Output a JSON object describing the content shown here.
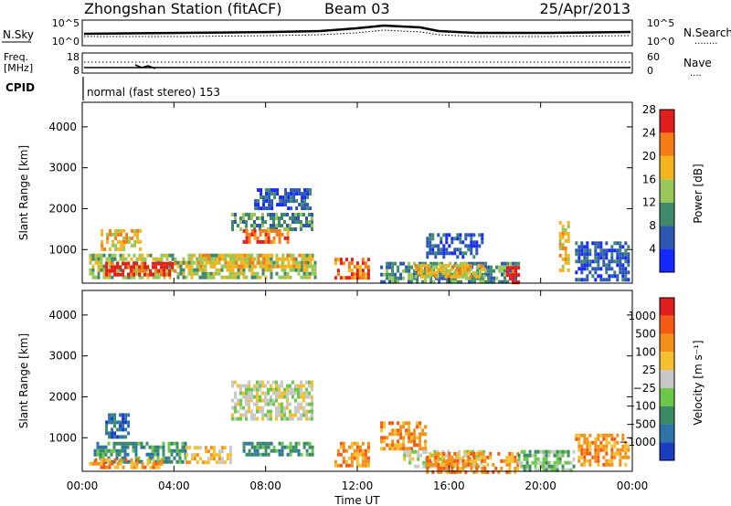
{
  "header": {
    "station": "Zhongshan Station (fitACF)",
    "beam": "Beam 03",
    "date": "25/Apr/2013"
  },
  "panels": {
    "noise": {
      "left_label": "N.Sky",
      "right_label": "N.Search",
      "left_ticks": [
        "10^5",
        "10^0"
      ],
      "right_ticks": [
        "10^5",
        "10^0"
      ],
      "right_legend_line": "........"
    },
    "freq": {
      "left_label_1": "Freq.",
      "left_label_2": "[MHz]",
      "right_label": "Nave",
      "left_ticks": [
        "18",
        "8"
      ],
      "right_ticks": [
        "60",
        "0"
      ],
      "right_legend_line": "...."
    },
    "cpid": {
      "label": "CPID",
      "text": "normal (fast stereo) 153"
    }
  },
  "x_ticks": [
    "00:00",
    "04:00",
    "08:00",
    "12:00",
    "16:00",
    "20:00",
    "00:00"
  ],
  "xlabel": "Time UT",
  "chart_data": [
    {
      "type": "heatmap",
      "name": "power",
      "ylabel": "Slant Range [km]",
      "y_ticks": [
        "1000",
        "2000",
        "3000",
        "4000"
      ],
      "ylim": [
        180,
        4600
      ],
      "xlim_hours": [
        0,
        24
      ],
      "colorbar_label": "Power [dB]",
      "colorbar_ticks": [
        "4",
        "8",
        "12",
        "16",
        "20",
        "24",
        "28"
      ],
      "colorbar_colors": [
        "#1428ff",
        "#2c58b4",
        "#3f8a6a",
        "#98c85a",
        "#f4b41c",
        "#f47c14",
        "#e01e1e"
      ],
      "regions": [
        {
          "x0": 0.3,
          "x1": 10.2,
          "y0": 300,
          "y1": 900,
          "level": 3
        },
        {
          "x0": 1.0,
          "x1": 4.0,
          "y0": 350,
          "y1": 700,
          "level": 6
        },
        {
          "x0": 0.8,
          "x1": 2.5,
          "y0": 1000,
          "y1": 1500,
          "level": 4
        },
        {
          "x0": 5.0,
          "x1": 10.0,
          "y0": 600,
          "y1": 900,
          "level": 4
        },
        {
          "x0": 6.5,
          "x1": 10.0,
          "y0": 1500,
          "y1": 1900,
          "level": 2
        },
        {
          "x0": 7.0,
          "x1": 9.0,
          "y0": 1200,
          "y1": 1500,
          "level": 5
        },
        {
          "x0": 7.5,
          "x1": 10.0,
          "y0": 2000,
          "y1": 2500,
          "level": 1
        },
        {
          "x0": 11.0,
          "x1": 12.5,
          "y0": 350,
          "y1": 800,
          "level": 5
        },
        {
          "x0": 13.0,
          "x1": 19.0,
          "y0": 200,
          "y1": 700,
          "level": 2
        },
        {
          "x0": 14.5,
          "x1": 17.5,
          "y0": 300,
          "y1": 650,
          "level": 4
        },
        {
          "x0": 15.0,
          "x1": 17.5,
          "y0": 800,
          "y1": 1400,
          "level": 1
        },
        {
          "x0": 18.5,
          "x1": 19.0,
          "y0": 200,
          "y1": 600,
          "level": 6
        },
        {
          "x0": 20.8,
          "x1": 21.2,
          "y0": 500,
          "y1": 1700,
          "level": 4
        },
        {
          "x0": 21.5,
          "x1": 23.8,
          "y0": 300,
          "y1": 1200,
          "level": 1
        }
      ]
    },
    {
      "type": "heatmap",
      "name": "velocity",
      "ylabel": "Slant Range [km]",
      "y_ticks": [
        "1000",
        "2000",
        "3000",
        "4000"
      ],
      "ylim": [
        180,
        4600
      ],
      "xlim_hours": [
        0,
        24
      ],
      "colorbar_label": "Velocity [m s⁻¹]",
      "colorbar_ticks": [
        "1000",
        "500",
        "100",
        "25",
        "−25",
        "−100",
        "−500",
        "−1000"
      ],
      "colorbar_colors": [
        "#1a3cbe",
        "#2e74a8",
        "#3b8c64",
        "#6cc84a",
        "#c8c8c8",
        "#f4c030",
        "#f49018",
        "#f45a14",
        "#e01e1e"
      ],
      "regions": [
        {
          "x0": 0.5,
          "x1": 4.5,
          "y0": 400,
          "y1": 900,
          "level": 2
        },
        {
          "x0": 0.3,
          "x1": 3.5,
          "y0": 250,
          "y1": 500,
          "level": 6
        },
        {
          "x0": 1.0,
          "x1": 2.0,
          "y0": 1000,
          "y1": 1600,
          "level": 1
        },
        {
          "x0": 4.5,
          "x1": 6.5,
          "y0": 400,
          "y1": 800,
          "level": 5
        },
        {
          "x0": 6.5,
          "x1": 10.0,
          "y0": 1500,
          "y1": 2400,
          "level": 4
        },
        {
          "x0": 7.0,
          "x1": 10.0,
          "y0": 600,
          "y1": 900,
          "level": 2
        },
        {
          "x0": 11.0,
          "x1": 12.5,
          "y0": 300,
          "y1": 900,
          "level": 6
        },
        {
          "x0": 13.0,
          "x1": 15.0,
          "y0": 700,
          "y1": 1400,
          "level": 6
        },
        {
          "x0": 14.0,
          "x1": 17.5,
          "y0": 300,
          "y1": 700,
          "level": 4
        },
        {
          "x0": 15.0,
          "x1": 19.0,
          "y0": 200,
          "y1": 650,
          "level": 6
        },
        {
          "x0": 19.0,
          "x1": 21.5,
          "y0": 200,
          "y1": 700,
          "level": 3
        },
        {
          "x0": 21.5,
          "x1": 23.8,
          "y0": 300,
          "y1": 1100,
          "level": 6
        }
      ]
    }
  ]
}
